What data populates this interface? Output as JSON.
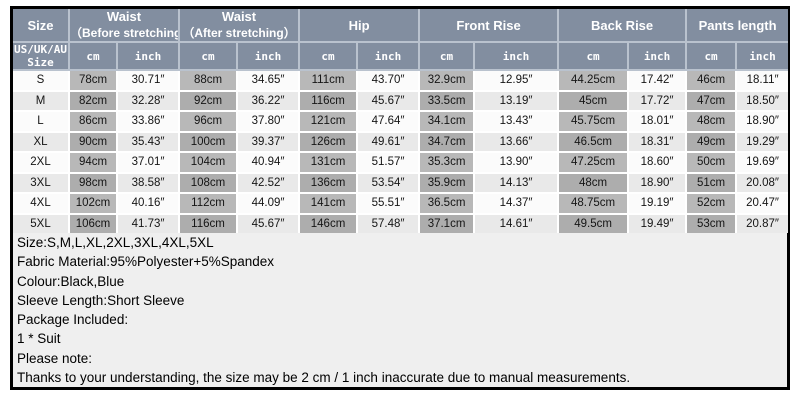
{
  "colors": {
    "header_bg": "#828ea0",
    "header_border": "#b9c2ce",
    "cm_cell_odd": "#b8b8b8",
    "cm_cell_even": "#adadad",
    "row_light_odd": "#fbfbfb",
    "row_light_even": "#e9e9e9",
    "frame": "#000000",
    "notes_bg": "#efefef"
  },
  "table": {
    "header": {
      "size_label": "Size",
      "size_sub1": "US/UK/AU",
      "size_sub2": "Size",
      "groups": [
        {
          "line1": "Waist",
          "line2": "（Before stretching）"
        },
        {
          "line1": "Waist",
          "line2": "（After stretching）"
        },
        {
          "line1": "Hip",
          "line2": ""
        },
        {
          "line1": "Front Rise",
          "line2": ""
        },
        {
          "line1": "Back Rise",
          "line2": ""
        },
        {
          "line1": "Pants length",
          "line2": ""
        }
      ],
      "unit_cm": "cm",
      "unit_inch": "inch"
    },
    "rows": [
      {
        "size": "S",
        "values": [
          "78cm",
          "30.71″",
          "88cm",
          "34.65″",
          "111cm",
          "43.70″",
          "32.9cm",
          "12.95″",
          "44.25cm",
          "17.42″",
          "46cm",
          "18.11″"
        ]
      },
      {
        "size": "M",
        "values": [
          "82cm",
          "32.28″",
          "92cm",
          "36.22″",
          "116cm",
          "45.67″",
          "33.5cm",
          "13.19″",
          "45cm",
          "17.72″",
          "47cm",
          "18.50″"
        ]
      },
      {
        "size": "L",
        "values": [
          "86cm",
          "33.86″",
          "96cm",
          "37.80″",
          "121cm",
          "47.64″",
          "34.1cm",
          "13.43″",
          "45.75cm",
          "18.01″",
          "48cm",
          "18.90″"
        ]
      },
      {
        "size": "XL",
        "values": [
          "90cm",
          "35.43″",
          "100cm",
          "39.37″",
          "126cm",
          "49.61″",
          "34.7cm",
          "13.66″",
          "46.5cm",
          "18.31″",
          "49cm",
          "19.29″"
        ]
      },
      {
        "size": "2XL",
        "values": [
          "94cm",
          "37.01″",
          "104cm",
          "40.94″",
          "131cm",
          "51.57″",
          "35.3cm",
          "13.90″",
          "47.25cm",
          "18.60″",
          "50cm",
          "19.69″"
        ]
      },
      {
        "size": "3XL",
        "values": [
          "98cm",
          "38.58″",
          "108cm",
          "42.52″",
          "136cm",
          "53.54″",
          "35.9cm",
          "14.13″",
          "48cm",
          "18.90″",
          "51cm",
          "20.08″"
        ]
      },
      {
        "size": "4XL",
        "values": [
          "102cm",
          "40.16″",
          "112cm",
          "44.09″",
          "141cm",
          "55.51″",
          "36.5cm",
          "14.37″",
          "48.75cm",
          "19.19″",
          "52cm",
          "20.47″"
        ]
      },
      {
        "size": "5XL",
        "values": [
          "106cm",
          "41.73″",
          "116cm",
          "45.67″",
          "146cm",
          "57.48″",
          "37.1cm",
          "14.61″",
          "49.5cm",
          "19.49″",
          "53cm",
          "20.87″"
        ]
      }
    ]
  },
  "notes": [
    "Size:S,M,L,XL,2XL,3XL,4XL,5XL",
    "Fabric Material:95%Polyester+5%Spandex",
    "Colour:Black,Blue",
    "Sleeve Length:Short Sleeve",
    "Package Included:",
    "1 * Suit",
    "Please note:",
    "Thanks to your understanding, the size may be 2 cm / 1 inch inaccurate due to manual measurements."
  ]
}
